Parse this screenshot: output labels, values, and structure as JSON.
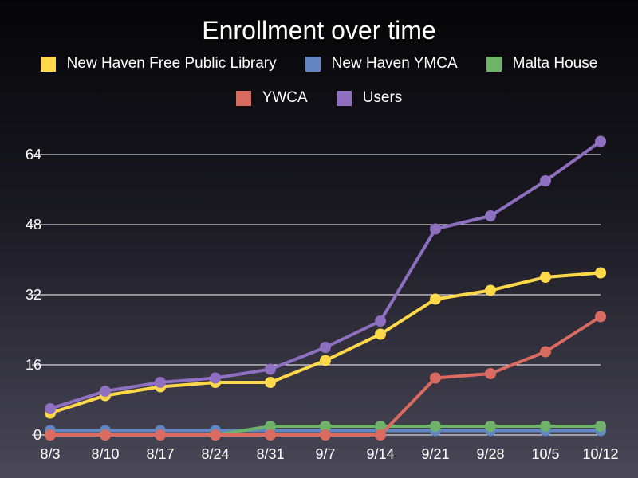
{
  "chart_data": {
    "type": "line",
    "title": "Enrollment over time",
    "xlabel": "",
    "ylabel": "",
    "categories": [
      "8/3",
      "8/10",
      "8/17",
      "8/24",
      "8/31",
      "9/7",
      "9/14",
      "9/21",
      "9/28",
      "10/5",
      "10/12"
    ],
    "ylim": [
      0,
      72
    ],
    "yticks": [
      0,
      16,
      32,
      48,
      64
    ],
    "grid": true,
    "legend_position": "top",
    "series": [
      {
        "name": "New Haven Free Public Library",
        "color": "#ffd94a",
        "values": [
          5,
          9,
          11,
          12,
          12,
          17,
          23,
          31,
          33,
          36,
          37
        ]
      },
      {
        "name": "New Haven YMCA",
        "color": "#6286c2",
        "values": [
          1,
          1,
          1,
          1,
          1,
          1,
          1,
          1,
          1,
          1,
          1
        ]
      },
      {
        "name": "Malta House",
        "color": "#6fb269",
        "values": [
          0,
          0,
          0,
          0,
          2,
          2,
          2,
          2,
          2,
          2,
          2
        ]
      },
      {
        "name": "YWCA",
        "color": "#d96b60",
        "values": [
          0,
          0,
          0,
          0,
          0,
          0,
          0,
          13,
          14,
          19,
          27
        ]
      },
      {
        "name": "Users",
        "color": "#8f6fbf",
        "values": [
          6,
          10,
          12,
          13,
          15,
          20,
          26,
          47,
          50,
          58,
          67
        ]
      }
    ]
  }
}
